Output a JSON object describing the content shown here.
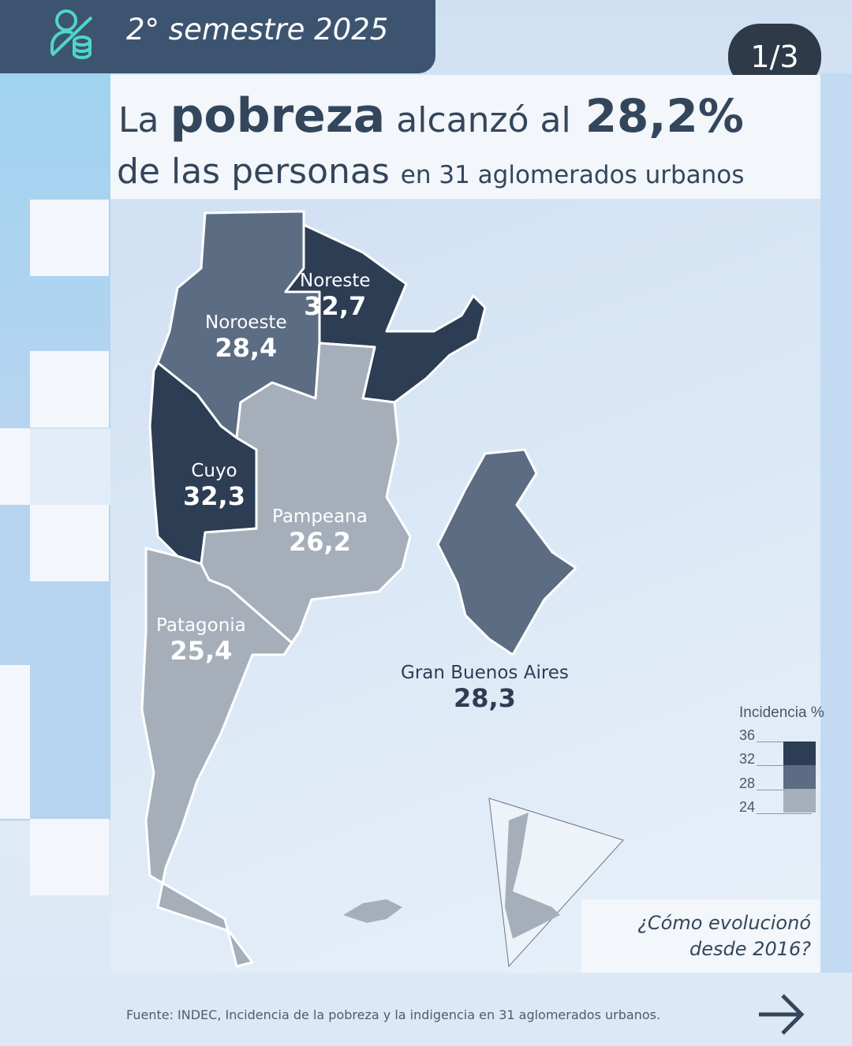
{
  "header": {
    "period": "2° semestre 2025",
    "icon": "person-coins-crossed-icon"
  },
  "pager": "1/3",
  "title": {
    "pre": "La ",
    "bold": "pobreza",
    "mid": " alcanzó al",
    "pct": "28,2%",
    "line2_big": "de las personas ",
    "line2_small": "en 31 aglomerados urbanos"
  },
  "regions": [
    {
      "name": "Noroeste",
      "value": "28,4"
    },
    {
      "name": "Noreste",
      "value": "32,7"
    },
    {
      "name": "Cuyo",
      "value": "32,3"
    },
    {
      "name": "Pampeana",
      "value": "26,2"
    },
    {
      "name": "Patagonia",
      "value": "25,4"
    },
    {
      "name": "Gran Buenos Aires",
      "value": "28,3"
    }
  ],
  "legend": {
    "title": "Incidencia %",
    "ticks": [
      "36",
      "32",
      "28",
      "24"
    ],
    "colors": [
      "#2c3d54",
      "#5b6c83",
      "#a6aeba"
    ]
  },
  "question": {
    "line1": "¿Cómo evolucionó",
    "line2": "desde 2016?"
  },
  "footer": "Fuente: INDEC, Incidencia de la pobreza y la indigencia en 31 aglomerados urbanos.",
  "colors": {
    "header": "#3d5470",
    "text": "#34465c",
    "accent": "#4fd6c8"
  }
}
